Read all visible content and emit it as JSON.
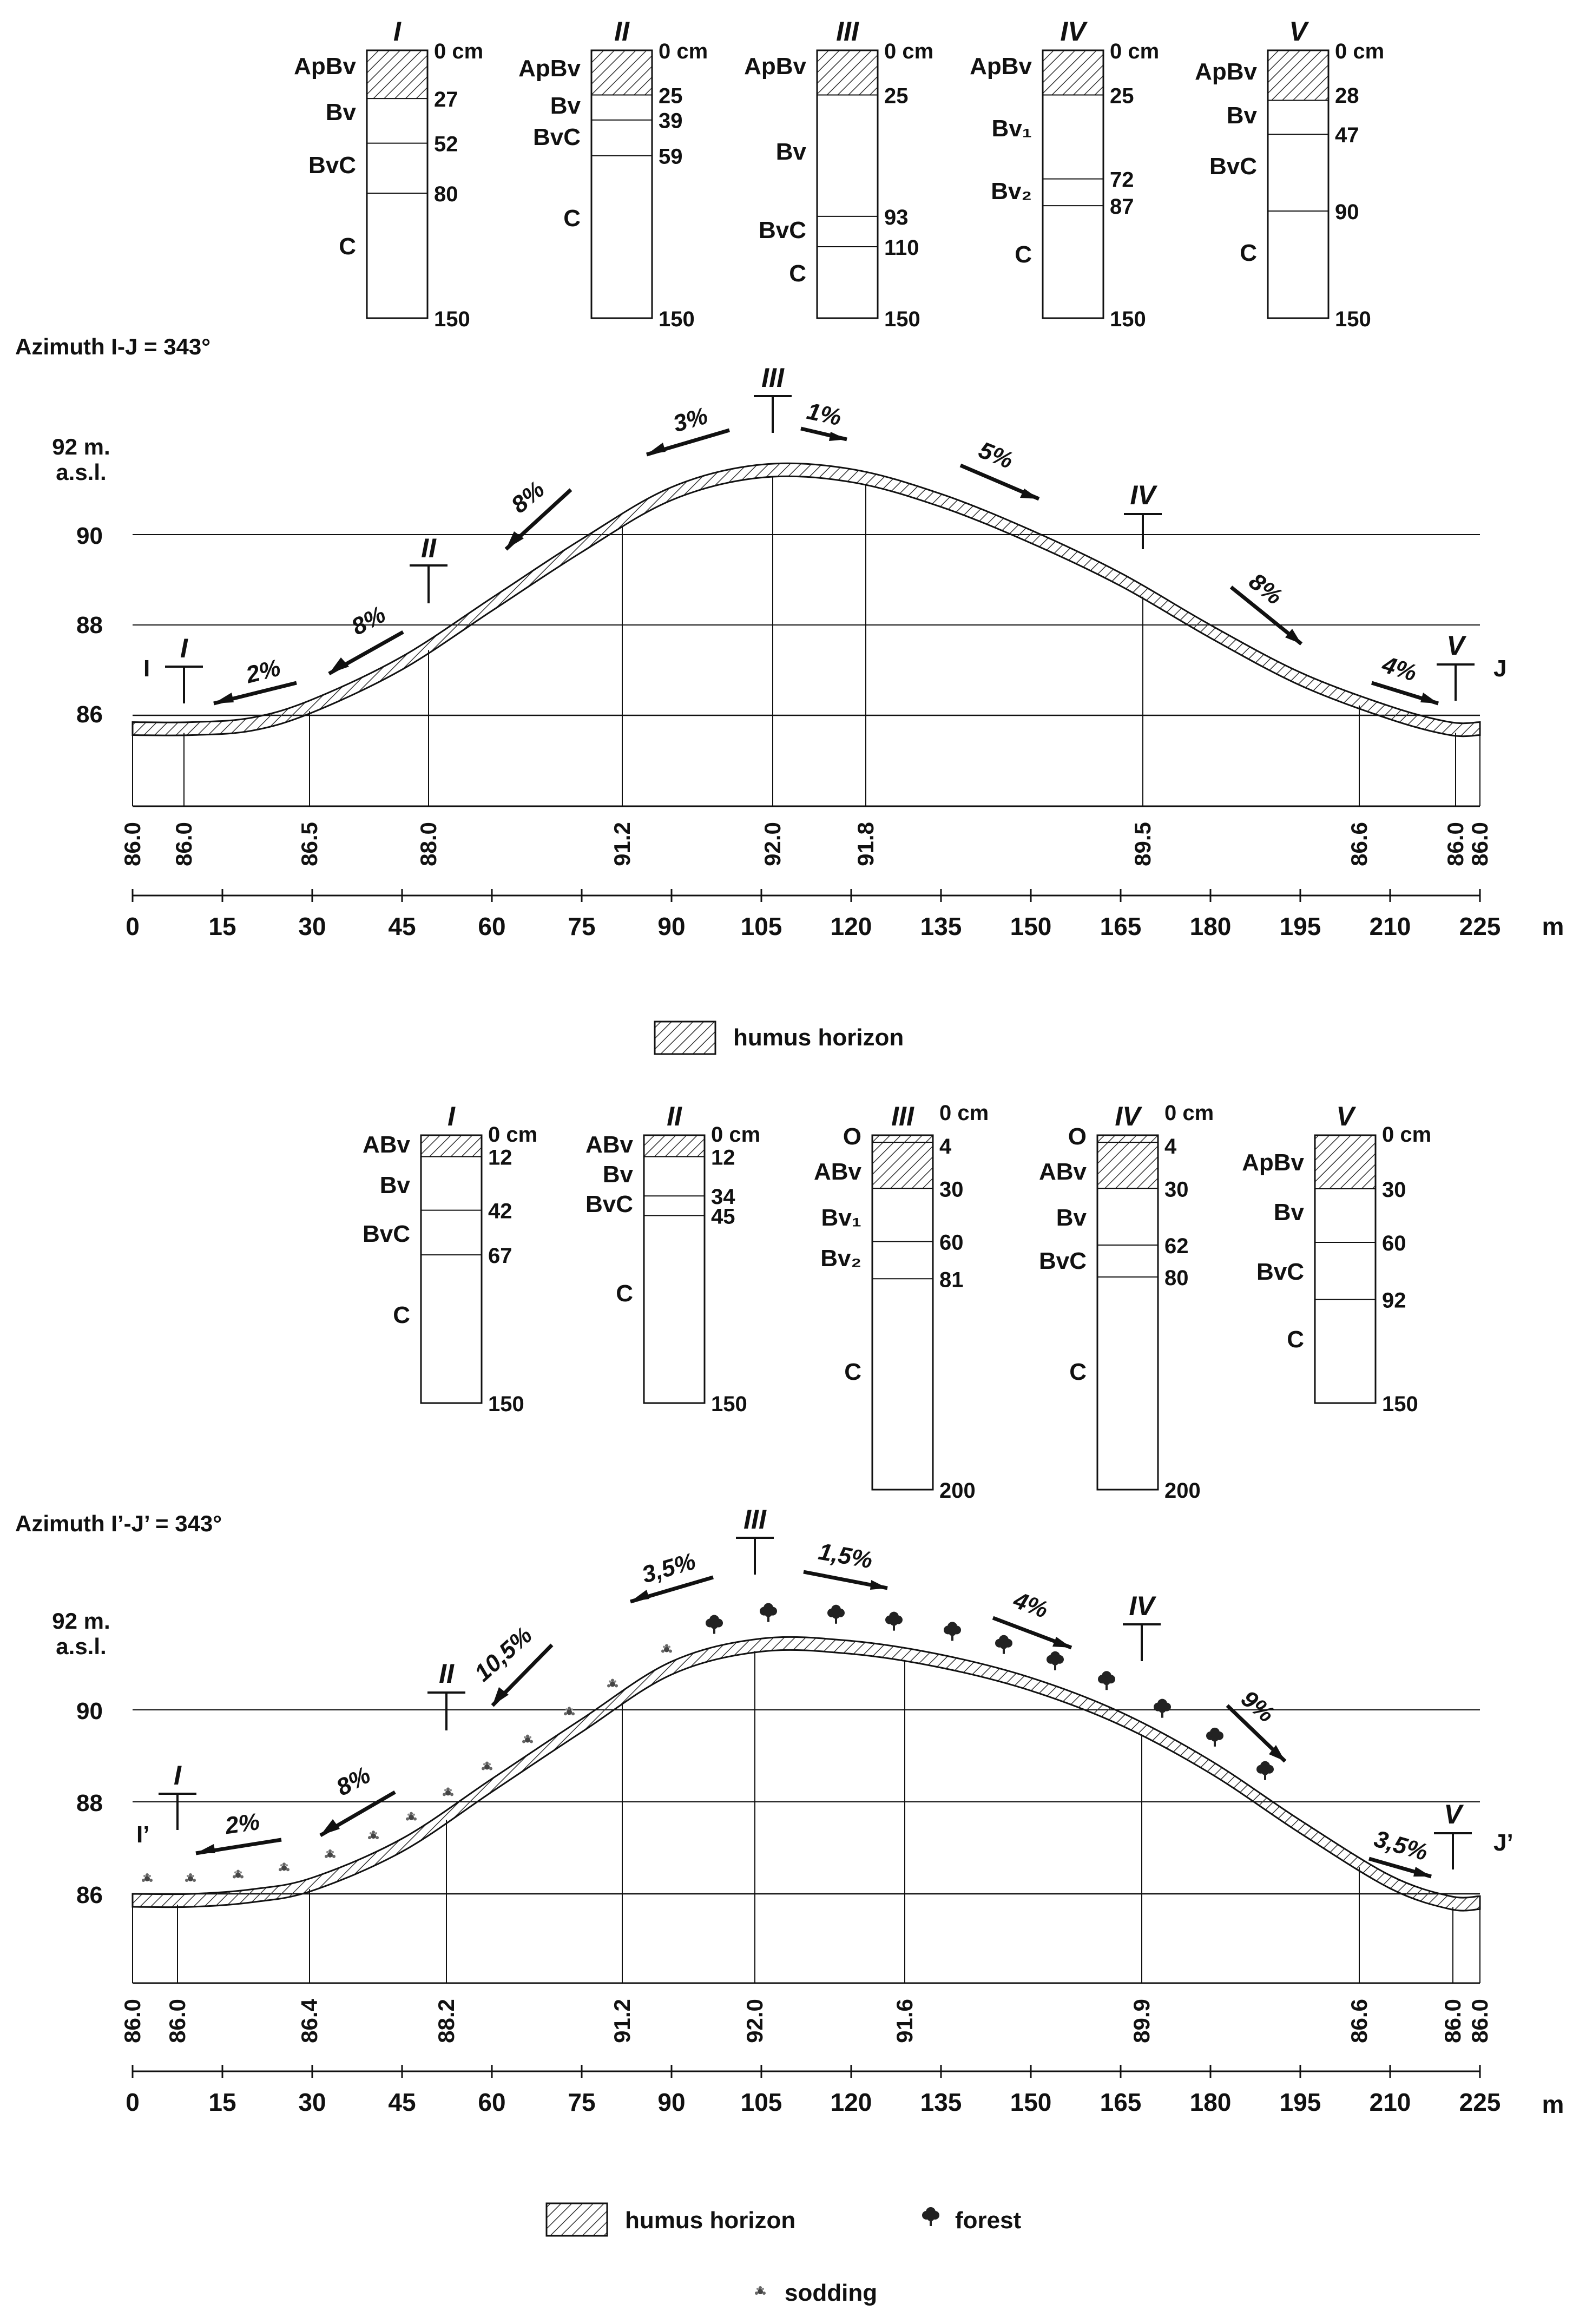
{
  "upper": {
    "azimuth": "Azimuth I-J = 343°",
    "profiles": [
      {
        "id": "I",
        "label_left": [
          "ApBv",
          "Bv",
          "BvC",
          "C"
        ],
        "depths": [
          "0 cm",
          "27",
          "52",
          "80",
          "150"
        ],
        "depth_values": [
          0,
          27,
          52,
          80,
          150
        ],
        "total": 150,
        "humus_to": 27
      },
      {
        "id": "II",
        "label_left": [
          "ApBv",
          "Bv",
          "BvC",
          "C"
        ],
        "depths": [
          "0 cm",
          "25",
          "39",
          "59",
          "150"
        ],
        "depth_values": [
          0,
          25,
          39,
          59,
          150
        ],
        "total": 150,
        "humus_to": 25
      },
      {
        "id": "III",
        "label_left": [
          "ApBv",
          "Bv",
          "BvC",
          "C"
        ],
        "depths": [
          "0 cm",
          "25",
          "93",
          "110",
          "150"
        ],
        "depth_values": [
          0,
          25,
          93,
          110,
          150
        ],
        "total": 150,
        "humus_to": 25
      },
      {
        "id": "IV",
        "label_left": [
          "ApBv",
          "Bv₁",
          "Bv₂",
          "C"
        ],
        "depths": [
          "0 cm",
          "25",
          "72",
          "87",
          "150"
        ],
        "depth_values": [
          0,
          25,
          72,
          87,
          150
        ],
        "total": 150,
        "humus_to": 25
      },
      {
        "id": "V",
        "label_left": [
          "ApBv",
          "Bv",
          "BvC",
          "C"
        ],
        "depths": [
          "0 cm",
          "28",
          "47",
          "90",
          "150"
        ],
        "depth_values": [
          0,
          28,
          47,
          90,
          150
        ],
        "total": 150,
        "humus_to": 28
      }
    ],
    "y_axis": {
      "title_line1": "92 m.",
      "title_line2": "a.s.l.",
      "ticks": [
        "90",
        "88",
        "86"
      ]
    },
    "end_labels": {
      "left": "I",
      "right": "J"
    },
    "slopes": [
      "2%",
      "8%",
      "8%",
      "3%",
      "1%",
      "5%",
      "8%",
      "4%"
    ],
    "station_elevations": [
      "86.0",
      "86.0",
      "86.5",
      "88.0",
      "91.2",
      "92.0",
      "91.8",
      "89.5",
      "86.6",
      "86.0",
      "86.0"
    ],
    "distance_ticks": [
      "0",
      "15",
      "30",
      "45",
      "60",
      "75",
      "90",
      "105",
      "120",
      "135",
      "150",
      "165",
      "180",
      "195",
      "210",
      "225"
    ],
    "distance_unit": "m",
    "legend": {
      "humus": "humus horizon"
    }
  },
  "lower": {
    "azimuth": "Azimuth I’-J’ = 343°",
    "profiles": [
      {
        "id": "I",
        "label_left": [
          "ABv",
          "Bv",
          "BvC",
          "C"
        ],
        "depths": [
          "0 cm",
          "12",
          "42",
          "67",
          "150"
        ],
        "total": 150,
        "humus_to": 12
      },
      {
        "id": "II",
        "label_left": [
          "ABv",
          "Bv",
          "BvC",
          "C"
        ],
        "depths": [
          "0 cm",
          "12",
          "34",
          "45",
          "150"
        ],
        "total": 150,
        "humus_to": 12
      },
      {
        "id": "III",
        "label_left": [
          "O",
          "ABv",
          "Bv₁",
          "Bv₂",
          "C"
        ],
        "depths": [
          "0 cm",
          "4",
          "30",
          "60",
          "81",
          "200"
        ],
        "total": 200,
        "humus_to": 30
      },
      {
        "id": "IV",
        "label_left": [
          "O",
          "ABv",
          "Bv",
          "BvC",
          "C"
        ],
        "depths": [
          "0 cm",
          "4",
          "30",
          "62",
          "80",
          "200"
        ],
        "total": 200,
        "humus_to": 30
      },
      {
        "id": "V",
        "label_left": [
          "ApBv",
          "Bv",
          "BvC",
          "C"
        ],
        "depths": [
          "0 cm",
          "30",
          "60",
          "92",
          "150"
        ],
        "total": 150,
        "humus_to": 30
      }
    ],
    "y_axis": {
      "title_line1": "92 m.",
      "title_line2": "a.s.l.",
      "ticks": [
        "90",
        "88",
        "86"
      ]
    },
    "end_labels": {
      "left": "I’",
      "right": "J’"
    },
    "slopes": [
      "2%",
      "8%",
      "10,5%",
      "3,5%",
      "1,5%",
      "4%",
      "9%",
      "3,5%"
    ],
    "station_elevations": [
      "86.0",
      "86.0",
      "86.4",
      "88.2",
      "91.2",
      "92.0",
      "91.6",
      "89.9",
      "86.6",
      "86.0",
      "86.0"
    ],
    "distance_ticks": [
      "0",
      "15",
      "30",
      "45",
      "60",
      "75",
      "90",
      "105",
      "120",
      "135",
      "150",
      "165",
      "180",
      "195",
      "210",
      "225"
    ],
    "distance_unit": "m",
    "legend": {
      "humus": "humus horizon",
      "forest": "forest",
      "sodding": "sodding"
    }
  },
  "colors": {
    "ink": "#111111",
    "hatch": "#333333",
    "background": "#ffffff"
  }
}
